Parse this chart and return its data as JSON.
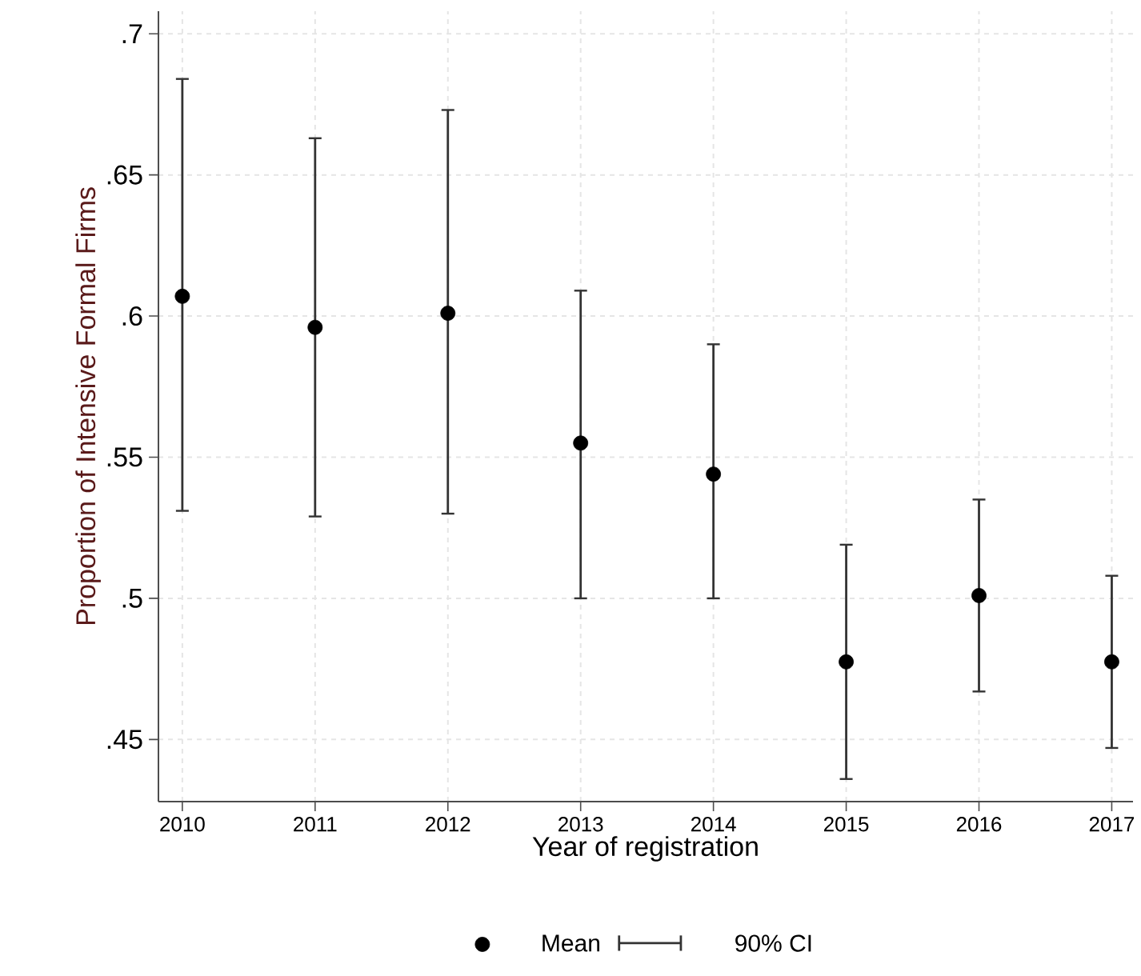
{
  "chart_data": {
    "type": "scatter",
    "xlabel": "Year of registration",
    "ylabel": "Proportion of Intensive Formal Firms",
    "x": [
      2010,
      2011,
      2012,
      2013,
      2014,
      2015,
      2016,
      2017
    ],
    "series": [
      {
        "name": "Mean",
        "color": "#000000",
        "values": [
          0.607,
          0.596,
          0.601,
          0.555,
          0.544,
          0.4775,
          0.501,
          0.4775
        ],
        "errors": [
          [
            0.531,
            0.684
          ],
          [
            0.529,
            0.663
          ],
          [
            0.53,
            0.673
          ],
          [
            0.5,
            0.609
          ],
          [
            0.5,
            0.59
          ],
          [
            0.436,
            0.519
          ],
          [
            0.467,
            0.535
          ],
          [
            0.447,
            0.508
          ]
        ]
      }
    ],
    "annotations": [
      "90% CI"
    ],
    "xlim": [
      2009.82,
      2017.16
    ],
    "ylim": [
      0.428,
      0.708
    ],
    "xticks": [
      2010,
      2011,
      2012,
      2013,
      2014,
      2015,
      2016,
      2017
    ],
    "yticks": [
      {
        "value": 0.45,
        "label": ".45"
      },
      {
        "value": 0.5,
        "label": ".5"
      },
      {
        "value": 0.55,
        "label": ".55"
      },
      {
        "value": 0.6,
        "label": ".6"
      },
      {
        "value": 0.65,
        "label": ".65"
      },
      {
        "value": 0.7,
        "label": ".7"
      }
    ],
    "grid": true,
    "legend": "bottom",
    "marker": "circle"
  }
}
